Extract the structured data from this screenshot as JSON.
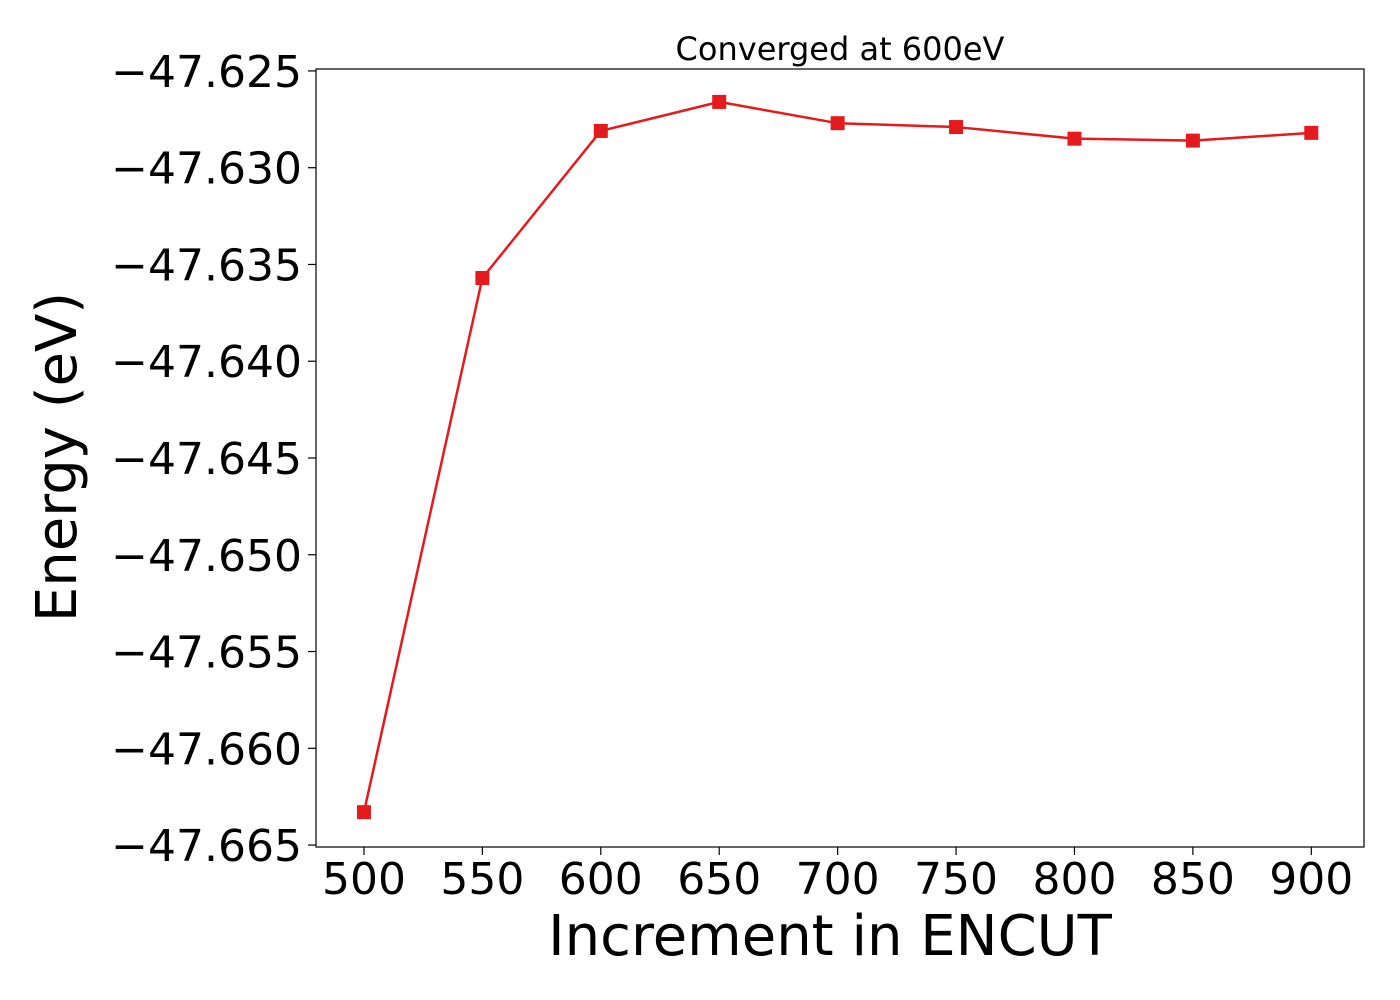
{
  "chart_data": {
    "type": "line",
    "title": "Converged at 600eV",
    "xlabel": "Increment in ENCUT",
    "ylabel": "Energy (eV)",
    "x": [
      500,
      550,
      600,
      650,
      700,
      750,
      800,
      850,
      900
    ],
    "series": [
      {
        "values": [
          -47.6633,
          -47.6357,
          -47.6281,
          -47.6266,
          -47.6277,
          -47.6279,
          -47.6285,
          -47.6286,
          -47.6282
        ],
        "color": "#e41a1c",
        "marker": "square"
      }
    ],
    "xticks": [
      500,
      550,
      600,
      650,
      700,
      750,
      800,
      850,
      900
    ],
    "yticks": [
      -47.665,
      -47.66,
      -47.655,
      -47.65,
      -47.645,
      -47.64,
      -47.635,
      -47.63,
      -47.625
    ],
    "ytick_labels": [
      "−47.665",
      "−47.660",
      "−47.655",
      "−47.650",
      "−47.645",
      "−47.640",
      "−47.635",
      "−47.630",
      "−47.625"
    ],
    "xlim": [
      479.75,
      922.25
    ],
    "ylim": [
      -47.6651,
      -47.6249
    ],
    "grid": false,
    "legend": "none"
  }
}
